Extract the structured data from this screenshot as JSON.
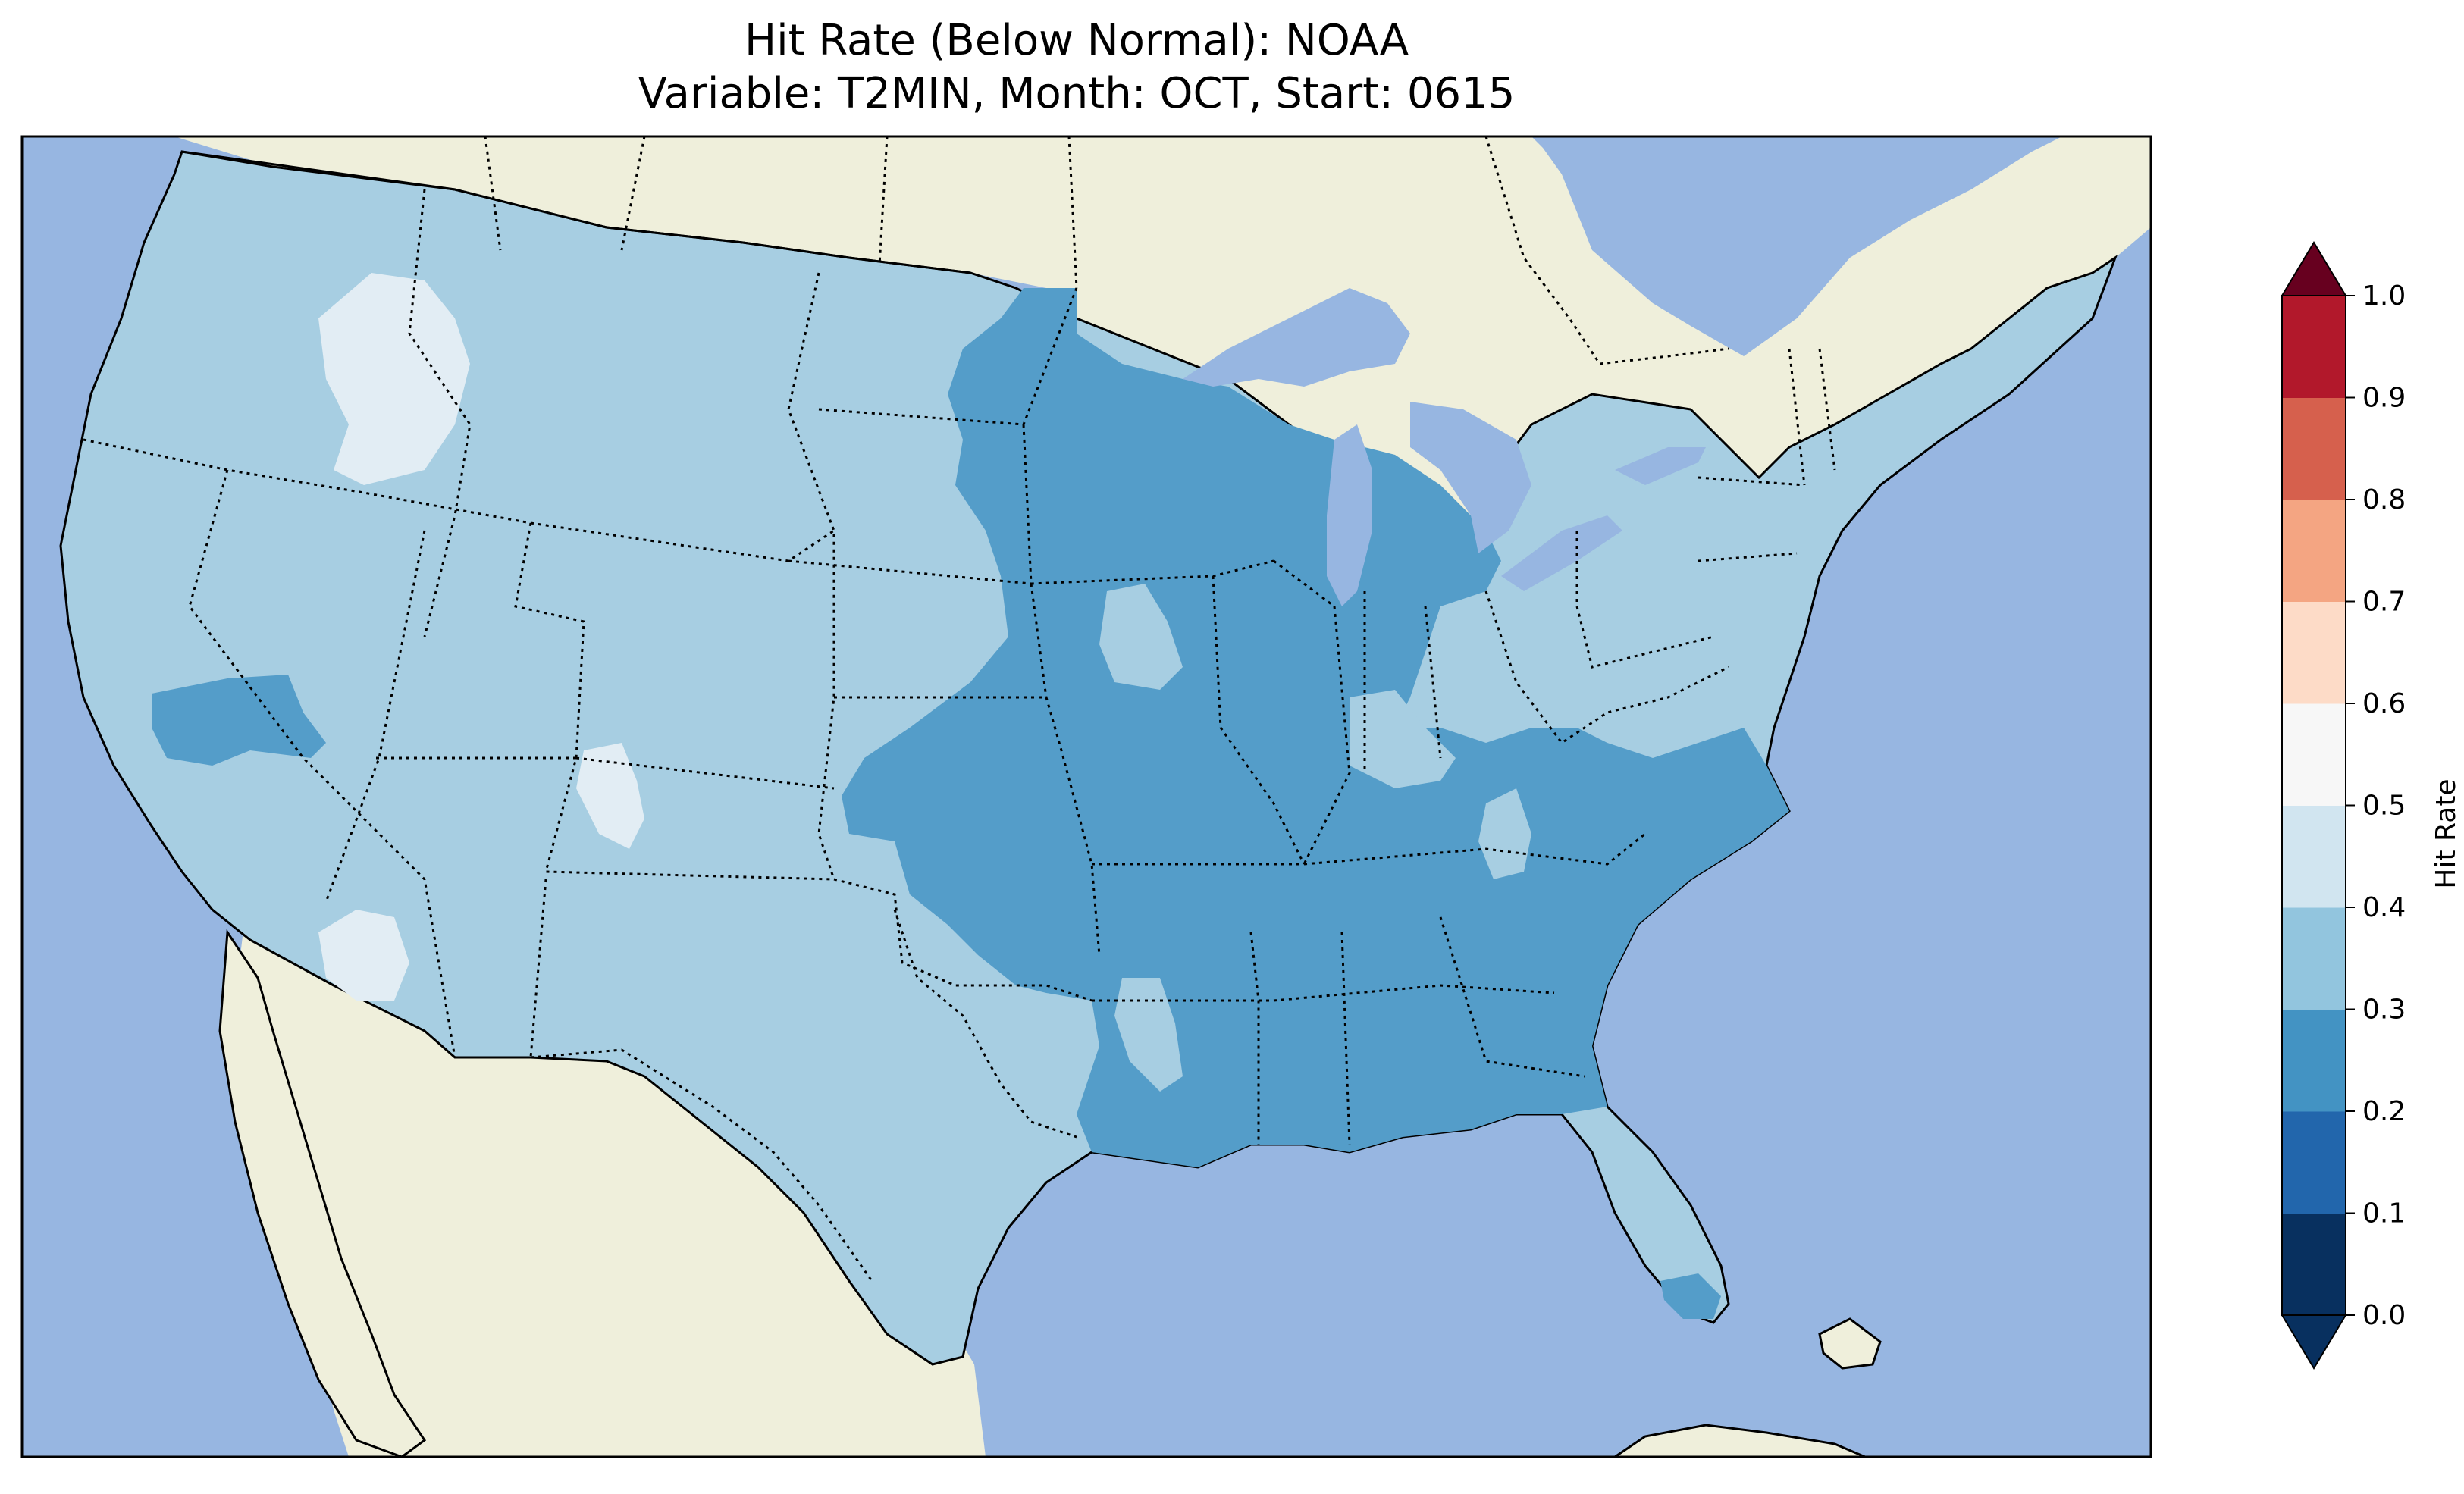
{
  "title": {
    "line1": "Hit Rate (Below Normal): NOAA",
    "line2": "Variable: T2MIN, Month: OCT, Start: 0615"
  },
  "colorbar": {
    "label": "Hit Rate",
    "ticks": [
      "0.0",
      "0.1",
      "0.2",
      "0.3",
      "0.4",
      "0.5",
      "0.6",
      "0.7",
      "0.8",
      "0.9",
      "1.0"
    ],
    "colors": [
      "#08305f",
      "#2266ac",
      "#4393c3",
      "#92c5de",
      "#d1e5f0",
      "#f7f7f7",
      "#fddbc7",
      "#f4a582",
      "#d6604d",
      "#b2182b",
      "#67001f"
    ],
    "extend": "both"
  },
  "map_colors": {
    "ocean": "#97b6e1",
    "land": "#efefdb",
    "lakes": "#97b6e1",
    "class_0.2_0.3": "#549dc9",
    "class_0.3_0.4": "#a7cee2",
    "class_0.4_0.5": "#e2edf4"
  },
  "legend_colors": {
    "0.0-0.1": "#08305f",
    "0.1-0.2": "#2266ac",
    "0.2-0.3": "#4393c3",
    "0.3-0.4": "#92c5de",
    "0.4-0.5": "#d1e5f0",
    "0.5-0.6": "#f7f7f7",
    "0.6-0.7": "#fddbc7",
    "0.7-0.8": "#f4a582",
    "0.8-0.9": "#d6604d",
    "0.9-1.0": "#b2182b",
    "above": "#67001f"
  }
}
